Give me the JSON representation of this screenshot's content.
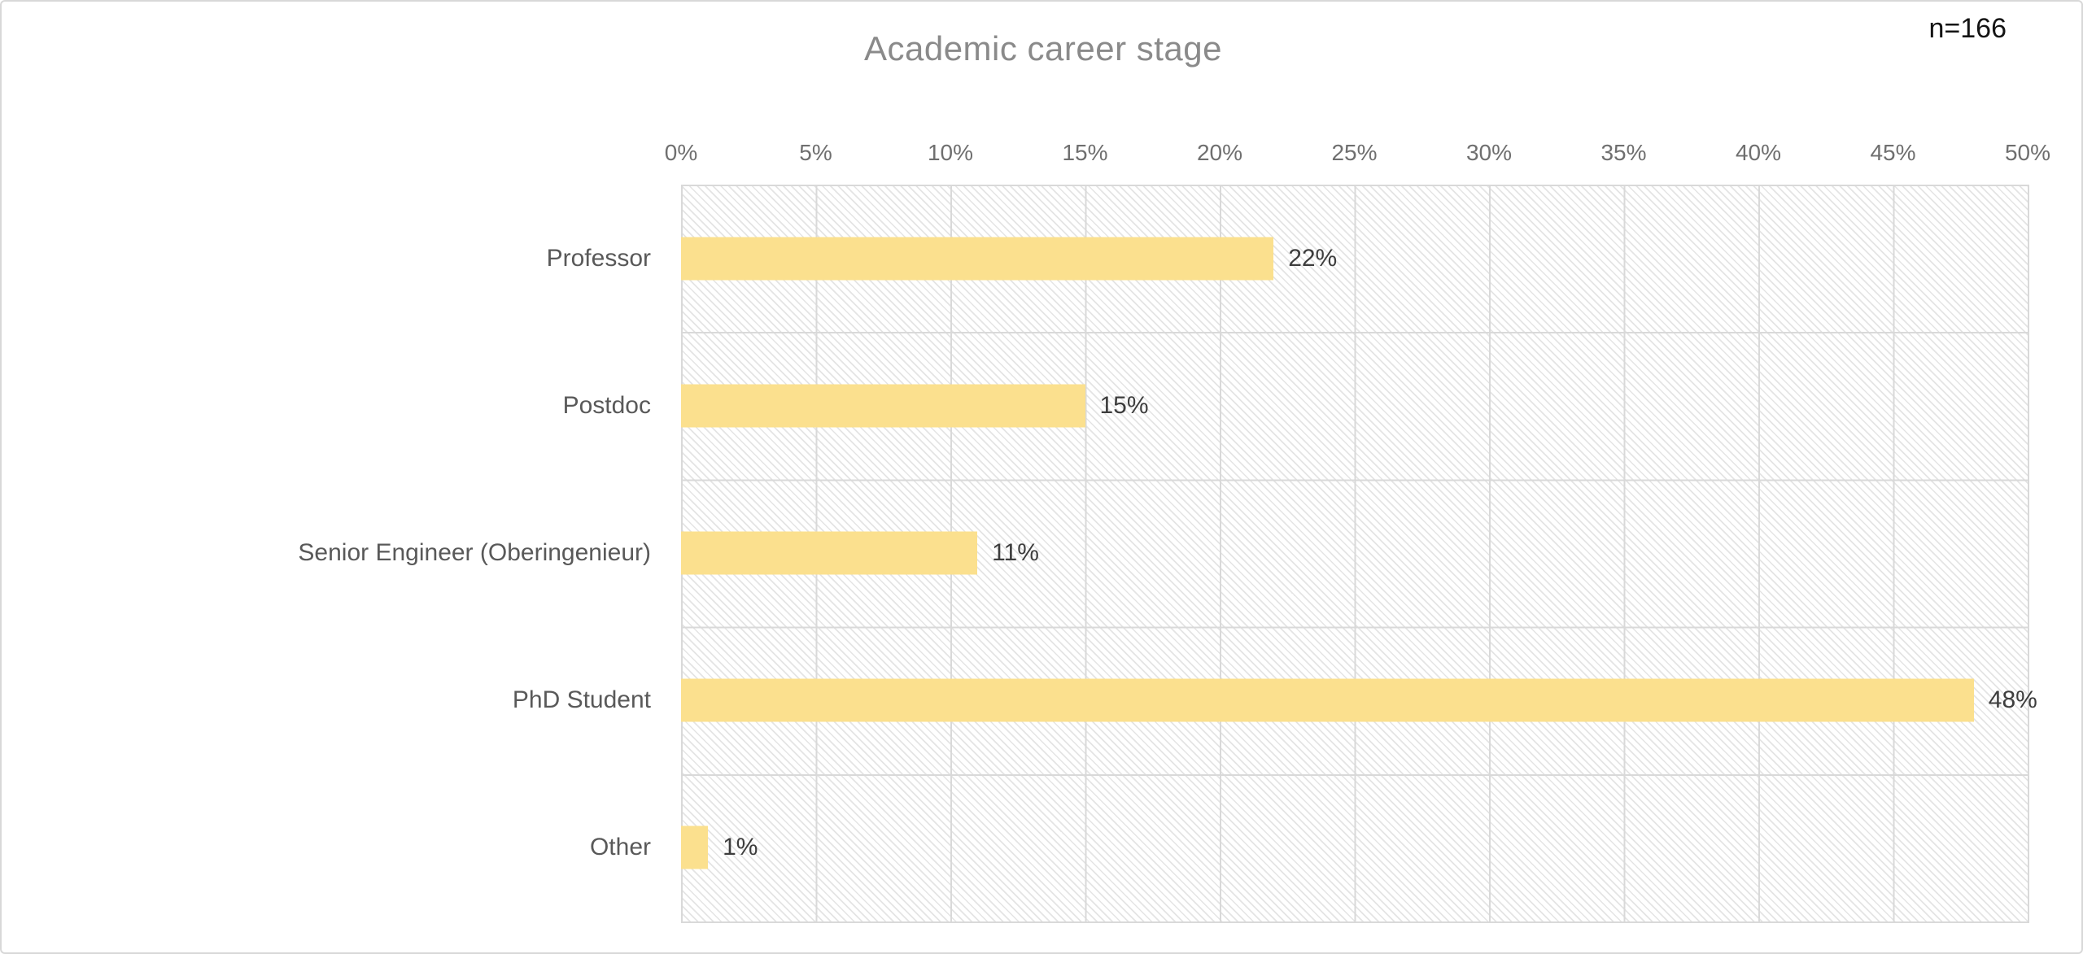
{
  "chart_data": {
    "type": "bar",
    "orientation": "horizontal",
    "title": "Academic career stage",
    "annotation": "n=166",
    "categories": [
      "Professor",
      "Postdoc",
      "Senior Engineer (Oberingenieur)",
      "PhD Student",
      "Other"
    ],
    "values": [
      22,
      15,
      11,
      48,
      1
    ],
    "data_labels": [
      "22%",
      "15%",
      "11%",
      "48%",
      "1%"
    ],
    "x_ticks": [
      "0%",
      "5%",
      "10%",
      "15%",
      "20%",
      "25%",
      "30%",
      "35%",
      "40%",
      "45%",
      "50%"
    ],
    "xlim": [
      0,
      50
    ],
    "grid": true,
    "legend": false,
    "background_pattern": "diagonal-hatch",
    "bar_color": "#FBE08E",
    "grid_color": "#D9D9D9",
    "hatch_color": "#E4E4E4",
    "title_color": "#8A8A8A",
    "category_label_color": "#595959",
    "tick_label_color": "#6F6F6F",
    "data_label_color": "#3D3D3D",
    "annotation_color": "#141414"
  }
}
